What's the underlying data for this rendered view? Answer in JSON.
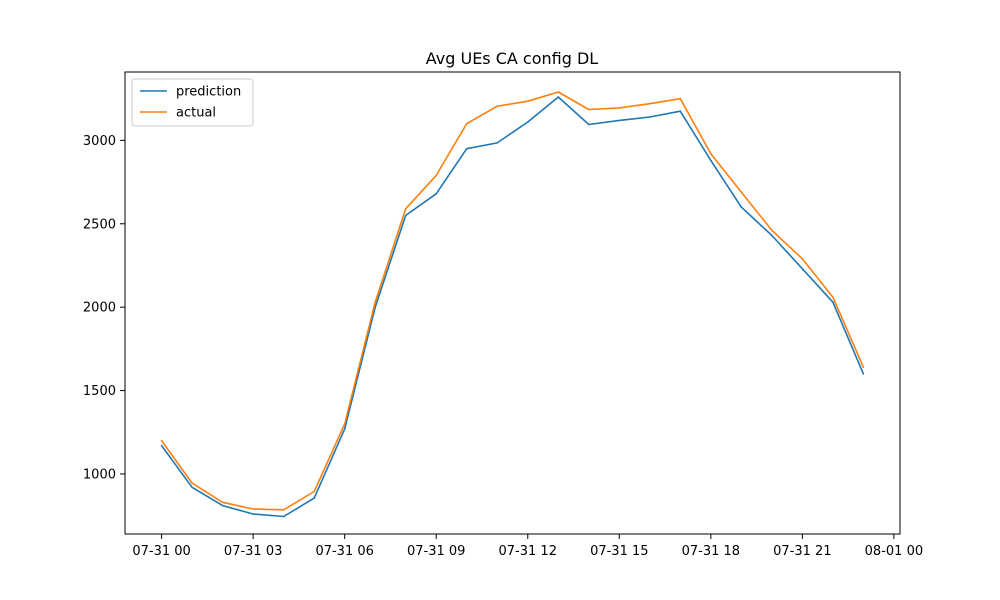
{
  "chart_data": {
    "type": "line",
    "title": "Avg UEs CA config DL",
    "xlabel": "",
    "ylabel": "",
    "x": [
      0,
      1,
      2,
      3,
      4,
      5,
      6,
      7,
      8,
      9,
      10,
      11,
      12,
      13,
      14,
      15,
      16,
      17,
      18,
      19,
      20,
      21,
      22,
      23
    ],
    "xlim": [
      -1.2,
      24.2
    ],
    "ylim": [
      640,
      3410
    ],
    "x_ticks": [
      {
        "value": 0,
        "label": "07-31 00"
      },
      {
        "value": 3,
        "label": "07-31 03"
      },
      {
        "value": 6,
        "label": "07-31 06"
      },
      {
        "value": 9,
        "label": "07-31 09"
      },
      {
        "value": 12,
        "label": "07-31 12"
      },
      {
        "value": 15,
        "label": "07-31 15"
      },
      {
        "value": 18,
        "label": "07-31 18"
      },
      {
        "value": 21,
        "label": "07-31 21"
      },
      {
        "value": 24,
        "label": "08-01 00"
      }
    ],
    "y_ticks": [
      {
        "value": 1000,
        "label": "1000"
      },
      {
        "value": 1500,
        "label": "1500"
      },
      {
        "value": 2000,
        "label": "2000"
      },
      {
        "value": 2500,
        "label": "2500"
      },
      {
        "value": 3000,
        "label": "3000"
      }
    ],
    "grid": false,
    "legend": "top-left",
    "series": [
      {
        "name": "prediction",
        "color": "#1f77b4",
        "values": [
          1170,
          920,
          810,
          760,
          745,
          855,
          1270,
          2000,
          2550,
          2680,
          2950,
          2985,
          3110,
          3260,
          3095,
          3120,
          3140,
          3175,
          2880,
          2600,
          2430,
          2230,
          2030,
          1600
        ]
      },
      {
        "name": "actual",
        "color": "#ff7f0e",
        "values": [
          1200,
          945,
          830,
          790,
          785,
          895,
          1300,
          2030,
          2590,
          2790,
          3100,
          3205,
          3235,
          3290,
          3185,
          3195,
          3220,
          3250,
          2920,
          2690,
          2460,
          2290,
          2060,
          1640
        ]
      }
    ]
  }
}
